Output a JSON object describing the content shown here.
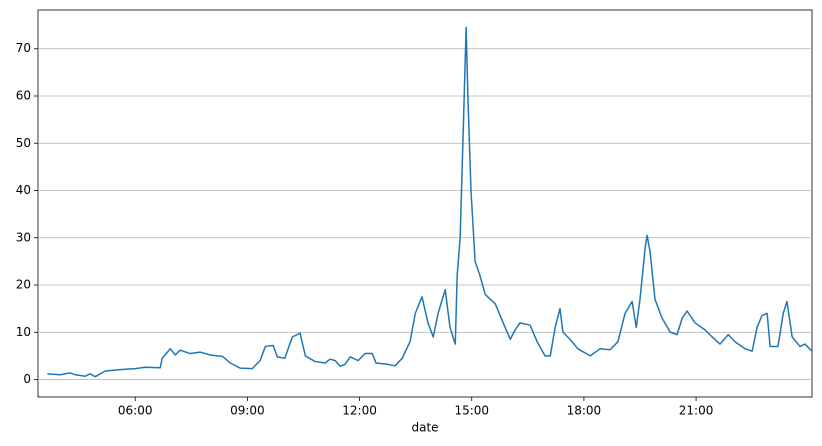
{
  "chart_data": {
    "type": "line",
    "x_label": "date",
    "x": [
      3.65,
      3.99,
      4.26,
      4.4,
      4.66,
      4.8,
      4.93,
      5.2,
      5.6,
      6.0,
      6.27,
      6.67,
      6.72,
      6.94,
      7.07,
      7.2,
      7.47,
      7.74,
      8.0,
      8.33,
      8.54,
      8.81,
      9.13,
      9.34,
      9.48,
      9.69,
      9.8,
      10.0,
      10.2,
      10.41,
      10.55,
      10.81,
      11.08,
      11.21,
      11.35,
      11.48,
      11.61,
      11.75,
      11.96,
      12.15,
      12.34,
      12.44,
      12.68,
      12.95,
      13.14,
      13.35,
      13.49,
      13.67,
      13.83,
      13.97,
      14.1,
      14.29,
      14.42,
      14.56,
      14.61,
      14.69,
      14.77,
      14.85,
      14.9,
      14.98,
      15.09,
      15.22,
      15.36,
      15.63,
      15.84,
      16.03,
      16.16,
      16.29,
      16.56,
      16.75,
      16.96,
      17.1,
      17.23,
      17.36,
      17.44,
      17.63,
      17.84,
      18.17,
      18.43,
      18.7,
      18.91,
      19.1,
      19.29,
      19.4,
      19.5,
      19.64,
      19.69,
      19.77,
      19.9,
      20.09,
      20.31,
      20.49,
      20.63,
      20.76,
      20.97,
      21.24,
      21.43,
      21.64,
      21.86,
      22.04,
      22.31,
      22.5,
      22.63,
      22.76,
      22.9,
      22.98,
      23.19,
      23.33,
      23.43,
      23.57,
      23.78,
      23.91,
      24.1
    ],
    "series": [
      {
        "color": "#1f77b4",
        "values": [
          1.2,
          1.0,
          1.4,
          1.0,
          0.7,
          1.2,
          0.6,
          1.8,
          2.1,
          2.3,
          2.6,
          2.5,
          4.5,
          6.5,
          5.2,
          6.2,
          5.5,
          5.8,
          5.2,
          4.9,
          3.5,
          2.4,
          2.3,
          4.0,
          7.0,
          7.2,
          4.8,
          4.5,
          9.0,
          9.8,
          5.0,
          3.8,
          3.5,
          4.3,
          4.0,
          2.8,
          3.2,
          4.8,
          4.0,
          5.5,
          5.5,
          3.5,
          3.3,
          2.9,
          4.5,
          8,
          14,
          17.5,
          12,
          9,
          14,
          19,
          11,
          7.5,
          22,
          30,
          52,
          74.5,
          59,
          40,
          25,
          22,
          18,
          16,
          12,
          8.5,
          10.5,
          12,
          11.5,
          8,
          5,
          5,
          11,
          15,
          10,
          8.5,
          6.5,
          5,
          6.5,
          6.3,
          8,
          14,
          16.5,
          11,
          17,
          28,
          30.5,
          27,
          17,
          13,
          10,
          9.5,
          13,
          14.5,
          12,
          10.5,
          9,
          7.5,
          9.5,
          8,
          6.5,
          6,
          11,
          13.5,
          14,
          7,
          7,
          14,
          16.5,
          9,
          7,
          7.5,
          6
        ]
      }
    ],
    "xlim": [
      3.4,
      24.1
    ],
    "xticks": [
      {
        "value": 6,
        "label": "06:00"
      },
      {
        "value": 9,
        "label": "09:00"
      },
      {
        "value": 12,
        "label": "12:00"
      },
      {
        "value": 15,
        "label": "15:00"
      },
      {
        "value": 18,
        "label": "18:00"
      },
      {
        "value": 21,
        "label": "21:00"
      }
    ],
    "ylim": [
      -3.7,
      78.2
    ],
    "yticks": [
      0,
      10,
      20,
      30,
      40,
      50,
      60,
      70
    ],
    "grid": "y"
  }
}
